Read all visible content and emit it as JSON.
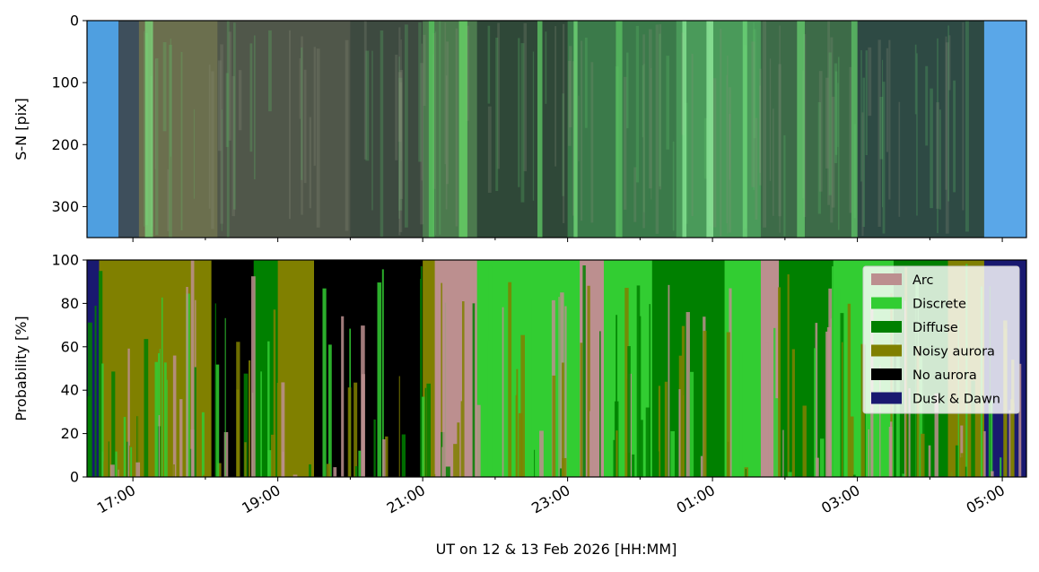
{
  "chart_data": [
    {
      "type": "heatmap",
      "description_panel": "keogram",
      "ylabel": "S-N [pix]",
      "yticks": [
        0,
        100,
        200,
        300
      ],
      "ylim": [
        350,
        0
      ],
      "x_time_ticks": [
        "17:00",
        "19:00",
        "21:00",
        "23:00",
        "01:00",
        "03:00",
        "05:00"
      ],
      "xlim": [
        "16:22",
        "05:20"
      ],
      "bands": [
        {
          "from": "16:22",
          "to": "16:48",
          "color": "#4f9fe0"
        },
        {
          "from": "16:48",
          "to": "17:05",
          "color": "#3e4f5c"
        },
        {
          "from": "17:05",
          "to": "18:10",
          "color": "#6b6f4e"
        },
        {
          "from": "18:10",
          "to": "20:00",
          "color": "#50574a"
        },
        {
          "from": "20:00",
          "to": "21:00",
          "color": "#3d4a40"
        },
        {
          "from": "21:00",
          "to": "21:45",
          "color": "#4c7a4e"
        },
        {
          "from": "21:45",
          "to": "23:00",
          "color": "#2f4838"
        },
        {
          "from": "23:00",
          "to": "00:30",
          "color": "#3b7a4a"
        },
        {
          "from": "00:30",
          "to": "01:40",
          "color": "#4a9a5a"
        },
        {
          "from": "01:40",
          "to": "03:00",
          "color": "#3d6b48"
        },
        {
          "from": "03:00",
          "to": "04:45",
          "color": "#2e4a44"
        },
        {
          "from": "04:45",
          "to": "05:20",
          "color": "#5aa7e8"
        }
      ],
      "streaks": [
        {
          "t": "17:10",
          "color": "#7ee07e"
        },
        {
          "t": "21:05",
          "color": "#58d060"
        },
        {
          "t": "21:30",
          "color": "#6be06a"
        },
        {
          "t": "22:35",
          "color": "#62d46a"
        },
        {
          "t": "23:05",
          "color": "#78e47c"
        },
        {
          "t": "23:40",
          "color": "#5cc864"
        },
        {
          "t": "00:35",
          "color": "#8ef09a"
        },
        {
          "t": "00:55",
          "color": "#9af4a4"
        },
        {
          "t": "01:25",
          "color": "#70dc7a"
        },
        {
          "t": "02:10",
          "color": "#6ad470"
        },
        {
          "t": "02:55",
          "color": "#60c86a"
        }
      ]
    },
    {
      "type": "area",
      "ylabel": "Probability [%]",
      "xlabel": "UT on 12 & 13 Feb 2026 [HH:MM]",
      "yticks": [
        0,
        20,
        40,
        60,
        80,
        100
      ],
      "ylim": [
        0,
        100
      ],
      "x_time_ticks": [
        "17:00",
        "19:00",
        "21:00",
        "23:00",
        "01:00",
        "03:00",
        "05:00"
      ],
      "xlim": [
        "16:22",
        "05:20"
      ],
      "legend_position": "upper right",
      "series": [
        {
          "name": "Arc",
          "color": "#bc8f8f"
        },
        {
          "name": "Discrete",
          "color": "#32cd32"
        },
        {
          "name": "Diffuse",
          "color": "#008000"
        },
        {
          "name": "Noisy aurora",
          "color": "#808000"
        },
        {
          "name": "No aurora",
          "color": "#000000"
        },
        {
          "name": "Dusk & Dawn",
          "color": "#191970"
        }
      ],
      "segments": [
        {
          "from": "16:22",
          "to": "16:32",
          "dominant": "Dusk & Dawn"
        },
        {
          "from": "16:32",
          "to": "17:00",
          "dominant": "Noisy aurora"
        },
        {
          "from": "17:00",
          "to": "17:45",
          "dominant": "Noisy aurora"
        },
        {
          "from": "17:45",
          "to": "18:05",
          "dominant": "Noisy aurora"
        },
        {
          "from": "18:05",
          "to": "18:40",
          "dominant": "No aurora"
        },
        {
          "from": "18:40",
          "to": "19:00",
          "dominant": "Diffuse"
        },
        {
          "from": "19:00",
          "to": "19:30",
          "dominant": "Noisy aurora"
        },
        {
          "from": "19:30",
          "to": "21:00",
          "dominant": "No aurora"
        },
        {
          "from": "21:00",
          "to": "21:10",
          "dominant": "Noisy aurora"
        },
        {
          "from": "21:10",
          "to": "21:45",
          "dominant": "Arc"
        },
        {
          "from": "21:45",
          "to": "23:10",
          "dominant": "Discrete"
        },
        {
          "from": "23:10",
          "to": "23:30",
          "dominant": "Arc"
        },
        {
          "from": "23:30",
          "to": "00:10",
          "dominant": "Discrete"
        },
        {
          "from": "00:10",
          "to": "01:10",
          "dominant": "Diffuse"
        },
        {
          "from": "01:10",
          "to": "01:40",
          "dominant": "Discrete"
        },
        {
          "from": "01:40",
          "to": "01:55",
          "dominant": "Arc"
        },
        {
          "from": "01:55",
          "to": "02:40",
          "dominant": "Diffuse"
        },
        {
          "from": "02:40",
          "to": "03:30",
          "dominant": "Discrete"
        },
        {
          "from": "03:30",
          "to": "04:15",
          "dominant": "Diffuse"
        },
        {
          "from": "04:15",
          "to": "04:45",
          "dominant": "Noisy aurora"
        },
        {
          "from": "04:45",
          "to": "05:20",
          "dominant": "Dusk & Dawn"
        }
      ]
    }
  ]
}
